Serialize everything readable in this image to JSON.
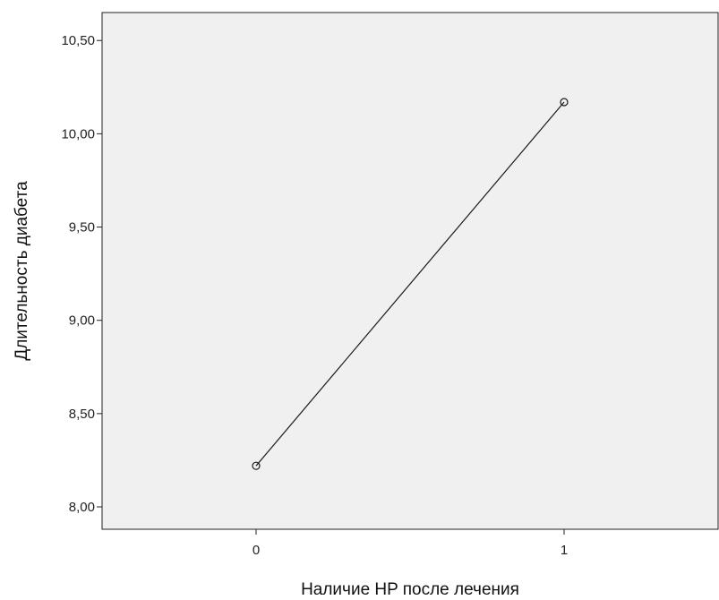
{
  "chart_data": {
    "type": "line",
    "title": "",
    "xlabel": "Наличие HP после лечения",
    "ylabel": "Длительность диабета",
    "categories": [
      "0",
      "1"
    ],
    "series": [
      {
        "values": [
          8.22,
          10.17
        ],
        "marker": "open-circle",
        "color": "#1a1a1a"
      }
    ],
    "ylim": [
      7.88,
      10.65
    ],
    "yticks": [
      {
        "value": 8.0,
        "label": "8,00"
      },
      {
        "value": 8.5,
        "label": "8,50"
      },
      {
        "value": 9.0,
        "label": "9,00"
      },
      {
        "value": 9.5,
        "label": "9,50"
      },
      {
        "value": 10.0,
        "label": "10,00"
      },
      {
        "value": 10.5,
        "label": "10,50"
      }
    ],
    "grid": false,
    "legend": "none",
    "plot_background": "#f0f0f0"
  }
}
